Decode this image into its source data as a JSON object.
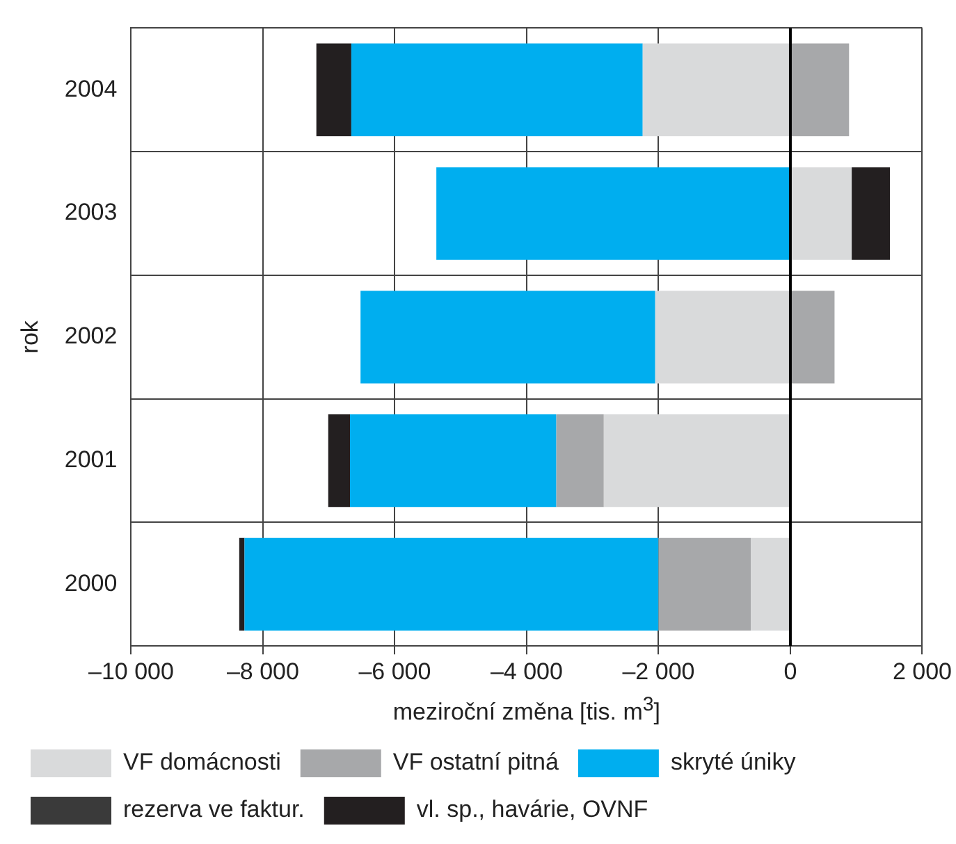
{
  "chart_data": {
    "type": "bar",
    "orientation": "horizontal",
    "stacked": true,
    "xlabel": "meziroční změna [tis. m$^{3}$]",
    "ylabel": "rok",
    "categories": [
      "2004",
      "2003",
      "2002",
      "2001",
      "2000"
    ],
    "series": [
      {
        "name": "VF domácnosti",
        "color": "#d9dadb",
        "values": [
          -2240,
          930,
          -2050,
          -2830,
          -600
        ]
      },
      {
        "name": "VF ostatní pitná",
        "color": "#a7a8aa",
        "values": [
          890,
          null,
          670,
          -720,
          -1400
        ]
      },
      {
        "name": "skryté úniky",
        "color": "#00aeef",
        "values": [
          -4420,
          -5370,
          -4470,
          -3130,
          -6280
        ]
      },
      {
        "name": "rezerva ve faktur.",
        "color": "#3a3a3a",
        "values": [
          null,
          null,
          null,
          null,
          null
        ]
      },
      {
        "name": "vl. sp., havárie, OVNF",
        "color": "#231f20",
        "values": [
          -530,
          580,
          null,
          -330,
          -80
        ]
      }
    ],
    "xlim": [
      -10000,
      2000
    ],
    "xticks": [
      {
        "value": -10000,
        "label": "–10 000"
      },
      {
        "value": -8000,
        "label": "–8 000"
      },
      {
        "value": -6000,
        "label": "–6 000"
      },
      {
        "value": -4000,
        "label": "–4 000"
      },
      {
        "value": -2000,
        "label": "–2 000"
      },
      0,
      {
        "value": 2000,
        "label": "2 000"
      }
    ],
    "ref_lines": [
      {
        "axis": "x",
        "value": 0,
        "color": "#000000"
      }
    ],
    "grid": true,
    "legend": "bottom"
  }
}
